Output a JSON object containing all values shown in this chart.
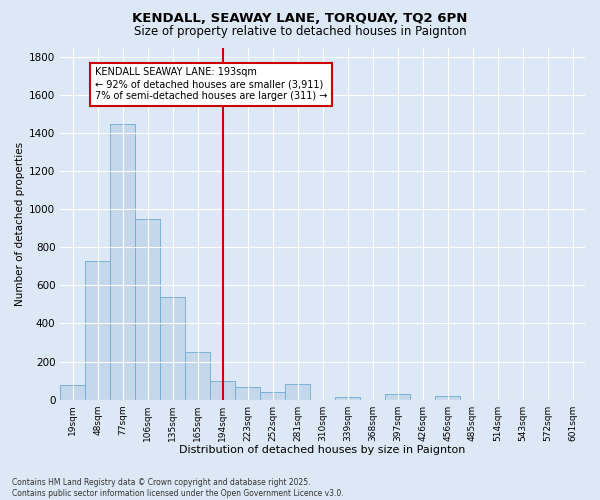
{
  "title": "KENDALL, SEAWAY LANE, TORQUAY, TQ2 6PN",
  "subtitle": "Size of property relative to detached houses in Paignton",
  "xlabel": "Distribution of detached houses by size in Paignton",
  "ylabel": "Number of detached properties",
  "footnote": "Contains HM Land Registry data © Crown copyright and database right 2025.\nContains public sector information licensed under the Open Government Licence v3.0.",
  "categories": [
    "19sqm",
    "48sqm",
    "77sqm",
    "106sqm",
    "135sqm",
    "165sqm",
    "194sqm",
    "223sqm",
    "252sqm",
    "281sqm",
    "310sqm",
    "339sqm",
    "368sqm",
    "397sqm",
    "426sqm",
    "456sqm",
    "485sqm",
    "514sqm",
    "543sqm",
    "572sqm",
    "601sqm"
  ],
  "values": [
    75,
    730,
    1450,
    950,
    540,
    250,
    100,
    65,
    40,
    80,
    0,
    15,
    0,
    30,
    0,
    20,
    0,
    0,
    0,
    0,
    0
  ],
  "bar_color": "#c5d8eb",
  "bar_edge_color": "#6aabd2",
  "vline_index": 6,
  "vline_color": "#cc0000",
  "annotation_text": "KENDALL SEAWAY LANE: 193sqm\n← 92% of detached houses are smaller (3,911)\n7% of semi-detached houses are larger (311) →",
  "bg_color": "#dce8f5",
  "plot_bg_color": "#dce8f5",
  "grid_color": "#ffffff",
  "ylim": [
    0,
    1850
  ],
  "yticks": [
    0,
    200,
    400,
    600,
    800,
    1000,
    1200,
    1400,
    1600,
    1800
  ]
}
